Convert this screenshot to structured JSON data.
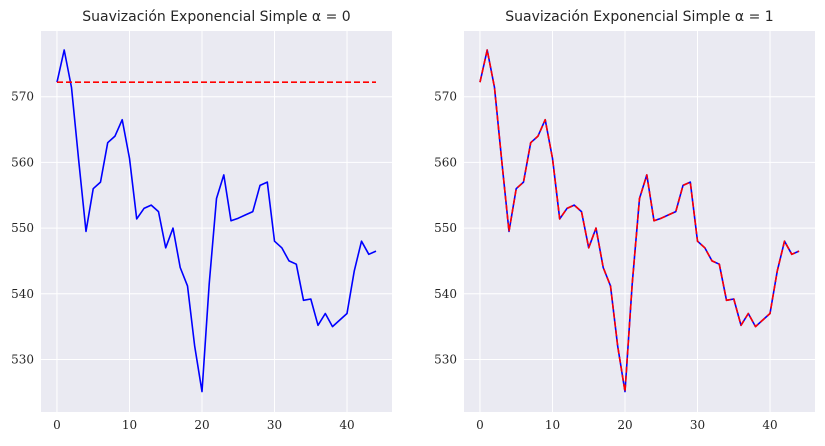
{
  "chart_data": [
    {
      "type": "line",
      "title": "Suavización Exponencial Simple α = 0",
      "xlim": [
        -2.2,
        46.2
      ],
      "ylim": [
        522,
        580
      ],
      "xticks": [
        0,
        10,
        20,
        30,
        40
      ],
      "yticks": [
        530,
        540,
        550,
        560,
        570
      ],
      "grid": true,
      "series": [
        {
          "color": "#0000ff",
          "style": "solid",
          "x": [
            0,
            1,
            2,
            3,
            4,
            5,
            6,
            7,
            8,
            9,
            10,
            11,
            12,
            13,
            14,
            15,
            16,
            17,
            18,
            19,
            20,
            21,
            22,
            23,
            24,
            25,
            26,
            27,
            28,
            29,
            30,
            31,
            32,
            33,
            34,
            35,
            36,
            37,
            38,
            39,
            40,
            41,
            42,
            43,
            44
          ],
          "y": [
            572.2,
            577.1,
            571.4,
            560.3,
            549.5,
            556.0,
            557.0,
            563.0,
            564.0,
            566.5,
            560.6,
            551.4,
            553.0,
            553.5,
            552.5,
            547.0,
            550.0,
            544.0,
            541.2,
            532.0,
            525.1,
            541.5,
            554.5,
            558.1,
            551.1,
            551.5,
            552.0,
            552.5,
            556.5,
            557.0,
            548.0,
            547.0,
            545.0,
            544.5,
            539.0,
            539.2,
            535.2,
            537.0,
            535.0,
            536.0,
            537.0,
            543.5,
            548.0,
            546.0,
            546.5
          ]
        },
        {
          "color": "#ff0000",
          "style": "dashed",
          "x": [
            0,
            1,
            2,
            3,
            4,
            5,
            6,
            7,
            8,
            9,
            10,
            11,
            12,
            13,
            14,
            15,
            16,
            17,
            18,
            19,
            20,
            21,
            22,
            23,
            24,
            25,
            26,
            27,
            28,
            29,
            30,
            31,
            32,
            33,
            34,
            35,
            36,
            37,
            38,
            39,
            40,
            41,
            42,
            43,
            44
          ],
          "y": [
            572.2,
            572.2,
            572.2,
            572.2,
            572.2,
            572.2,
            572.2,
            572.2,
            572.2,
            572.2,
            572.2,
            572.2,
            572.2,
            572.2,
            572.2,
            572.2,
            572.2,
            572.2,
            572.2,
            572.2,
            572.2,
            572.2,
            572.2,
            572.2,
            572.2,
            572.2,
            572.2,
            572.2,
            572.2,
            572.2,
            572.2,
            572.2,
            572.2,
            572.2,
            572.2,
            572.2,
            572.2,
            572.2,
            572.2,
            572.2,
            572.2,
            572.2,
            572.2,
            572.2,
            572.2
          ]
        }
      ]
    },
    {
      "type": "line",
      "title": "Suavización Exponencial Simple α = 1",
      "xlim": [
        -2.2,
        46.2
      ],
      "ylim": [
        522,
        580
      ],
      "xticks": [
        0,
        10,
        20,
        30,
        40
      ],
      "yticks": [
        530,
        540,
        550,
        560,
        570
      ],
      "grid": true,
      "series": [
        {
          "color": "#0000ff",
          "style": "solid",
          "x": [
            0,
            1,
            2,
            3,
            4,
            5,
            6,
            7,
            8,
            9,
            10,
            11,
            12,
            13,
            14,
            15,
            16,
            17,
            18,
            19,
            20,
            21,
            22,
            23,
            24,
            25,
            26,
            27,
            28,
            29,
            30,
            31,
            32,
            33,
            34,
            35,
            36,
            37,
            38,
            39,
            40,
            41,
            42,
            43,
            44
          ],
          "y": [
            572.2,
            577.1,
            571.4,
            560.3,
            549.5,
            556.0,
            557.0,
            563.0,
            564.0,
            566.5,
            560.6,
            551.4,
            553.0,
            553.5,
            552.5,
            547.0,
            550.0,
            544.0,
            541.2,
            532.0,
            525.1,
            541.5,
            554.5,
            558.1,
            551.1,
            551.5,
            552.0,
            552.5,
            556.5,
            557.0,
            548.0,
            547.0,
            545.0,
            544.5,
            539.0,
            539.2,
            535.2,
            537.0,
            535.0,
            536.0,
            537.0,
            543.5,
            548.0,
            546.0,
            546.5
          ]
        },
        {
          "color": "#ff0000",
          "style": "dashed",
          "x": [
            0,
            1,
            2,
            3,
            4,
            5,
            6,
            7,
            8,
            9,
            10,
            11,
            12,
            13,
            14,
            15,
            16,
            17,
            18,
            19,
            20,
            21,
            22,
            23,
            24,
            25,
            26,
            27,
            28,
            29,
            30,
            31,
            32,
            33,
            34,
            35,
            36,
            37,
            38,
            39,
            40,
            41,
            42,
            43,
            44
          ],
          "y": [
            572.2,
            577.1,
            571.4,
            560.3,
            549.5,
            556.0,
            557.0,
            563.0,
            564.0,
            566.5,
            560.6,
            551.4,
            553.0,
            553.5,
            552.5,
            547.0,
            550.0,
            544.0,
            541.2,
            532.0,
            525.1,
            541.5,
            554.5,
            558.1,
            551.1,
            551.5,
            552.0,
            552.5,
            556.5,
            557.0,
            548.0,
            547.0,
            545.0,
            544.5,
            539.0,
            539.2,
            535.2,
            537.0,
            535.0,
            536.0,
            537.0,
            543.5,
            548.0,
            546.0,
            546.5
          ]
        }
      ]
    }
  ],
  "style": {
    "panel_bg": "#eaeaf2",
    "grid_color": "#ffffff",
    "text_color": "#262626"
  }
}
